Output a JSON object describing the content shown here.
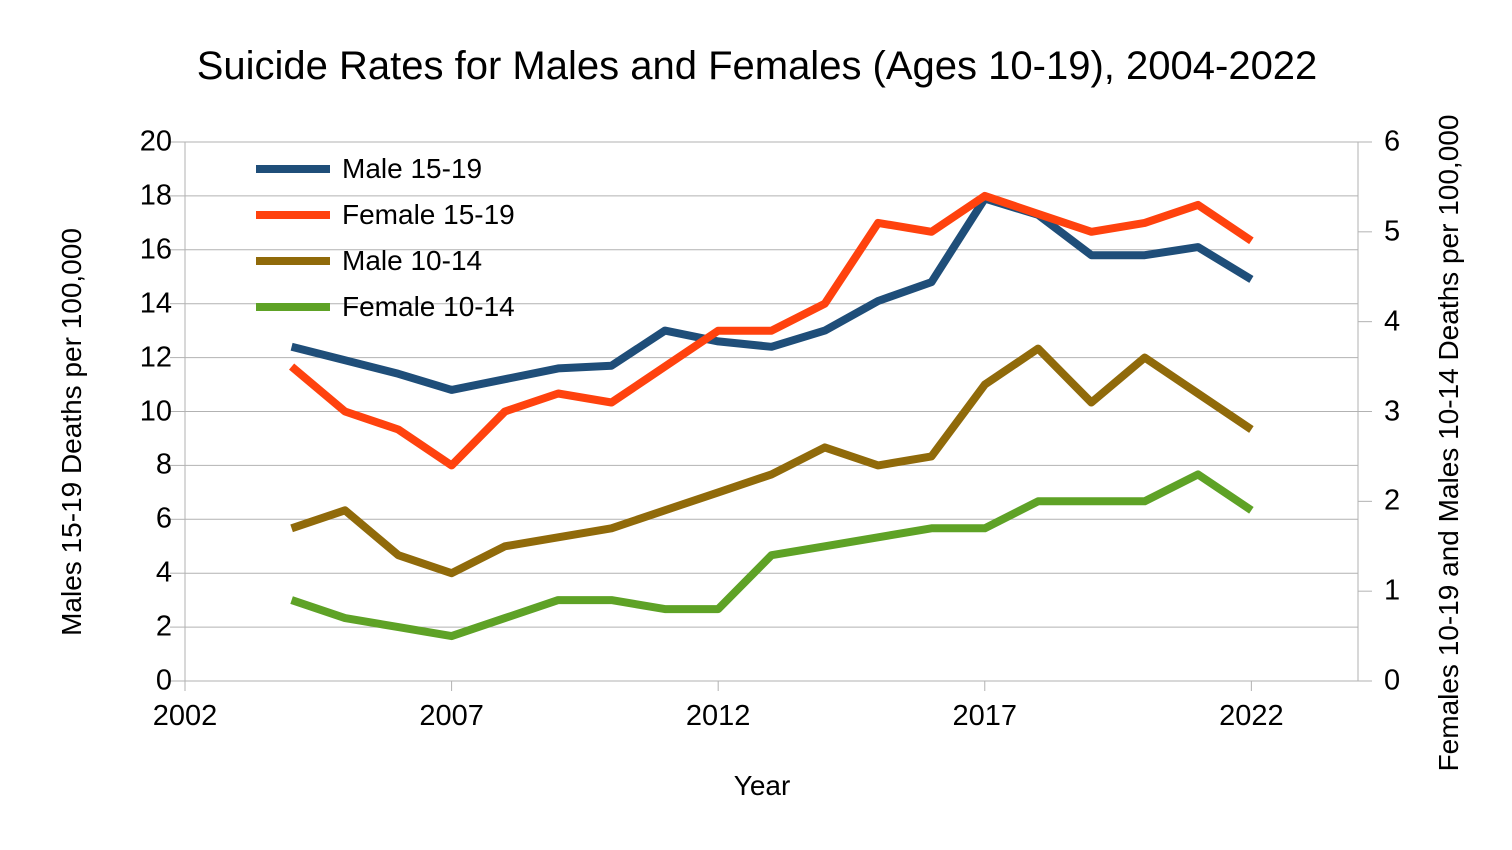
{
  "chart_data": {
    "type": "line",
    "title": "Suicide Rates for Males and Females (Ages 10-19), 2004-2022",
    "xlabel": "Year",
    "grid": "horizontal",
    "legend_position": "top-left-inside",
    "x_axis": {
      "min": 2002,
      "max": 2024,
      "tick_labels": [
        2002,
        2007,
        2012,
        2017,
        2022
      ]
    },
    "left_axis": {
      "label": "Males 15-19 Deaths per 100,000",
      "min": 0,
      "max": 20,
      "ticks": [
        0,
        2,
        4,
        6,
        8,
        10,
        12,
        14,
        16,
        18,
        20
      ]
    },
    "right_axis": {
      "label": "Females 10-19 and Males 10-14 Deaths per 100,000",
      "min": 0,
      "max": 6,
      "ticks": [
        0,
        1,
        2,
        3,
        4,
        5,
        6
      ]
    },
    "years": [
      2004,
      2005,
      2006,
      2007,
      2008,
      2009,
      2010,
      2011,
      2012,
      2013,
      2014,
      2015,
      2016,
      2017,
      2018,
      2019,
      2020,
      2021,
      2022
    ],
    "series": [
      {
        "name": "Male 15-19",
        "axis": "left",
        "color": "#1F4E79",
        "values": [
          12.4,
          11.9,
          11.4,
          10.8,
          11.2,
          11.6,
          11.7,
          13.0,
          12.6,
          12.4,
          13.0,
          14.1,
          14.8,
          17.9,
          17.3,
          15.8,
          15.8,
          16.1,
          14.9
        ]
      },
      {
        "name": "Female 15-19",
        "axis": "right",
        "color": "#FF420E",
        "values": [
          3.5,
          3.0,
          2.8,
          2.4,
          3.0,
          3.2,
          3.1,
          3.5,
          3.9,
          3.9,
          4.2,
          5.1,
          5.0,
          5.4,
          5.2,
          5.0,
          5.1,
          5.3,
          4.9
        ]
      },
      {
        "name": "Male 10-14",
        "axis": "right",
        "color": "#906A0A",
        "values": [
          1.7,
          1.9,
          1.4,
          1.2,
          1.5,
          1.6,
          1.7,
          1.9,
          2.1,
          2.3,
          2.6,
          2.4,
          2.5,
          3.3,
          3.7,
          3.1,
          3.6,
          3.2,
          2.8
        ]
      },
      {
        "name": "Female 10-14",
        "axis": "right",
        "color": "#5EA226",
        "values": [
          0.9,
          0.7,
          0.6,
          0.5,
          0.7,
          0.9,
          0.9,
          0.8,
          0.8,
          1.4,
          1.5,
          1.6,
          1.7,
          1.7,
          2.0,
          2.0,
          2.0,
          2.3,
          1.9
        ]
      }
    ]
  },
  "colors": {
    "gridline": "#b2b2b2",
    "axis": "#b2b2b2",
    "text": "#000000",
    "background": "#ffffff"
  }
}
